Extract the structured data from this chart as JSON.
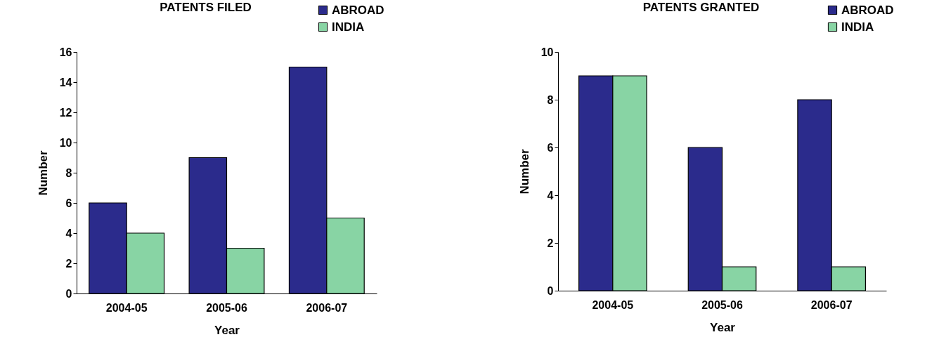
{
  "chart_data": [
    {
      "type": "bar",
      "title": "PATENTS FILED",
      "xlabel": "Year",
      "ylabel": "Number",
      "categories": [
        "2004-05",
        "2005-06",
        "2006-07"
      ],
      "series": [
        {
          "name": "ABROAD",
          "color": "#2b2b8c",
          "values": [
            6,
            9,
            15
          ]
        },
        {
          "name": "INDIA",
          "color": "#88d4a4",
          "values": [
            4,
            3,
            5
          ]
        }
      ],
      "ylim": [
        0,
        16
      ],
      "yticks": [
        0,
        2,
        4,
        6,
        8,
        10,
        12,
        14,
        16
      ],
      "grid": false,
      "legend": "top right"
    },
    {
      "type": "bar",
      "title": "PATENTS GRANTED",
      "xlabel": "Year",
      "ylabel": "Number",
      "categories": [
        "2004-05",
        "2005-06",
        "2006-07"
      ],
      "series": [
        {
          "name": "ABROAD",
          "color": "#2b2b8c",
          "values": [
            9,
            6,
            8
          ]
        },
        {
          "name": "INDIA",
          "color": "#88d4a4",
          "values": [
            9,
            1,
            1
          ]
        }
      ],
      "ylim": [
        0,
        10
      ],
      "yticks": [
        0,
        2,
        4,
        6,
        8,
        10
      ],
      "grid": false,
      "legend": "top right"
    }
  ]
}
